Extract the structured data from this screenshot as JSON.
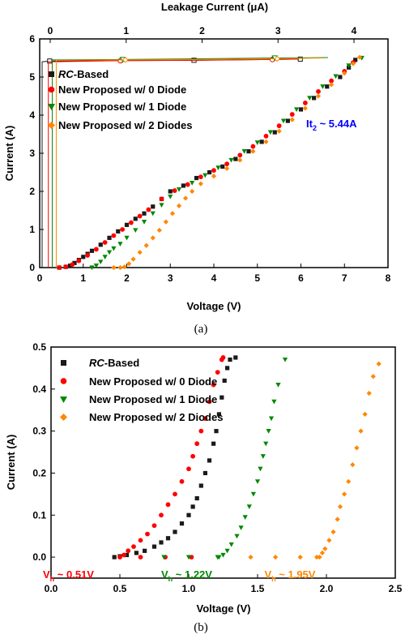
{
  "colors": {
    "rc": "#1a1a1a",
    "d0": "#ff0000",
    "d1": "#008800",
    "d2": "#ff8800",
    "it2": "#0000ff"
  },
  "legend_labels": {
    "rc_italic": "RC",
    "rc_rest": "-Based",
    "d0": "New Proposed w/ 0 Diode",
    "d1": "New Proposed w/ 1 Diode",
    "d2": "New Proposed w/ 2 Diodes"
  },
  "chart_data": [
    {
      "id": "a",
      "type": "scatter",
      "caption": "(a)",
      "xlabel": "Voltage (V)",
      "ylabel": "Current (A)",
      "x2label": "Leakage Current (μA)",
      "xlim": [
        0,
        8
      ],
      "ylim": [
        0,
        6
      ],
      "x2lim": [
        0,
        4
      ],
      "xticks": [
        "0",
        "1",
        "2",
        "3",
        "4",
        "5",
        "6",
        "7",
        "8"
      ],
      "yticks": [
        "0",
        "1",
        "2",
        "3",
        "4",
        "5",
        "6"
      ],
      "x2ticks": [
        "0",
        "1",
        "2",
        "3",
        "4"
      ],
      "annotation": {
        "main": "It",
        "sub": "2",
        "rest": " ~ 5.44A",
        "x": 6.05,
        "y": 3.9
      },
      "series": [
        {
          "key": "rc",
          "marker": "square",
          "points": [
            [
              0.45,
              0
            ],
            [
              0.6,
              0.02
            ],
            [
              0.7,
              0.05
            ],
            [
              0.8,
              0.12
            ],
            [
              0.9,
              0.2
            ],
            [
              1.0,
              0.28
            ],
            [
              1.1,
              0.36
            ],
            [
              1.2,
              0.44
            ],
            [
              1.4,
              0.6
            ],
            [
              1.6,
              0.78
            ],
            [
              1.8,
              0.95
            ],
            [
              2.0,
              1.12
            ],
            [
              2.2,
              1.28
            ],
            [
              2.4,
              1.42
            ],
            [
              2.6,
              1.6
            ],
            [
              2.8,
              1.8
            ],
            [
              3.0,
              2.0
            ],
            [
              3.3,
              2.15
            ],
            [
              3.6,
              2.35
            ],
            [
              3.9,
              2.5
            ],
            [
              4.2,
              2.65
            ],
            [
              4.5,
              2.85
            ],
            [
              4.8,
              3.05
            ],
            [
              5.1,
              3.3
            ],
            [
              5.4,
              3.55
            ],
            [
              5.7,
              3.85
            ],
            [
              6.0,
              4.15
            ],
            [
              6.3,
              4.45
            ],
            [
              6.6,
              4.75
            ],
            [
              6.9,
              5.0
            ],
            [
              7.1,
              5.25
            ],
            [
              7.25,
              5.45
            ]
          ]
        },
        {
          "key": "d0",
          "marker": "circle",
          "points": [
            [
              0.45,
              0
            ],
            [
              0.6,
              0.02
            ],
            [
              0.75,
              0.08
            ],
            [
              0.9,
              0.18
            ],
            [
              1.1,
              0.32
            ],
            [
              1.3,
              0.48
            ],
            [
              1.5,
              0.66
            ],
            [
              1.7,
              0.84
            ],
            [
              1.9,
              1.0
            ],
            [
              2.1,
              1.18
            ],
            [
              2.3,
              1.35
            ],
            [
              2.5,
              1.52
            ],
            [
              2.8,
              1.8
            ],
            [
              3.1,
              2.02
            ],
            [
              3.4,
              2.18
            ],
            [
              3.7,
              2.38
            ],
            [
              4.0,
              2.55
            ],
            [
              4.3,
              2.72
            ],
            [
              4.6,
              2.95
            ],
            [
              4.9,
              3.18
            ],
            [
              5.2,
              3.45
            ],
            [
              5.5,
              3.72
            ],
            [
              5.8,
              4.02
            ],
            [
              6.1,
              4.32
            ],
            [
              6.4,
              4.62
            ],
            [
              6.7,
              4.9
            ],
            [
              7.0,
              5.15
            ],
            [
              7.2,
              5.38
            ]
          ]
        },
        {
          "key": "d1",
          "marker": "triangle-down",
          "points": [
            [
              1.2,
              0
            ],
            [
              1.3,
              0.05
            ],
            [
              1.4,
              0.15
            ],
            [
              1.5,
              0.28
            ],
            [
              1.6,
              0.4
            ],
            [
              1.7,
              0.5
            ],
            [
              1.85,
              0.62
            ],
            [
              2.0,
              0.78
            ],
            [
              2.2,
              0.98
            ],
            [
              2.4,
              1.2
            ],
            [
              2.6,
              1.42
            ],
            [
              2.8,
              1.64
            ],
            [
              3.0,
              1.86
            ],
            [
              3.2,
              2.05
            ],
            [
              3.5,
              2.22
            ],
            [
              3.8,
              2.42
            ],
            [
              4.1,
              2.62
            ],
            [
              4.4,
              2.82
            ],
            [
              4.7,
              3.05
            ],
            [
              5.0,
              3.28
            ],
            [
              5.3,
              3.55
            ],
            [
              5.6,
              3.85
            ],
            [
              5.9,
              4.15
            ],
            [
              6.2,
              4.45
            ],
            [
              6.5,
              4.75
            ],
            [
              6.8,
              5.02
            ],
            [
              7.1,
              5.3
            ],
            [
              7.4,
              5.5
            ]
          ]
        },
        {
          "key": "d2",
          "marker": "diamond",
          "points": [
            [
              1.7,
              0
            ],
            [
              1.85,
              0
            ],
            [
              1.95,
              0.02
            ],
            [
              2.05,
              0.1
            ],
            [
              2.15,
              0.22
            ],
            [
              2.3,
              0.4
            ],
            [
              2.45,
              0.58
            ],
            [
              2.6,
              0.78
            ],
            [
              2.75,
              0.98
            ],
            [
              2.9,
              1.2
            ],
            [
              3.05,
              1.42
            ],
            [
              3.2,
              1.62
            ],
            [
              3.35,
              1.82
            ],
            [
              3.5,
              2.0
            ],
            [
              3.7,
              2.2
            ],
            [
              4.0,
              2.4
            ],
            [
              4.3,
              2.6
            ],
            [
              4.6,
              2.82
            ],
            [
              4.9,
              3.05
            ],
            [
              5.2,
              3.3
            ],
            [
              5.5,
              3.58
            ],
            [
              5.8,
              3.88
            ],
            [
              6.1,
              4.18
            ],
            [
              6.4,
              4.5
            ],
            [
              6.7,
              4.8
            ],
            [
              7.0,
              5.1
            ],
            [
              7.2,
              5.35
            ],
            [
              7.35,
              5.52
            ]
          ]
        }
      ],
      "leakage_series": [
        {
          "key": "rc",
          "marker": "square",
          "points": [
            [
              0.0,
              0.0
            ],
            [
              0.0,
              5.4
            ],
            [
              0.1,
              5.42
            ],
            [
              1.0,
              5.43
            ],
            [
              2.0,
              5.44
            ],
            [
              3.0,
              5.46
            ],
            [
              3.4,
              5.47
            ]
          ]
        },
        {
          "key": "d0",
          "marker": "circle",
          "points": [
            [
              0.05,
              0.0
            ],
            [
              0.05,
              5.4
            ],
            [
              1.0,
              5.43
            ],
            [
              2.0,
              5.44
            ],
            [
              3.0,
              5.46
            ],
            [
              3.35,
              5.47
            ]
          ]
        },
        {
          "key": "d1",
          "marker": "triangle-down",
          "points": [
            [
              0.07,
              0.0
            ],
            [
              0.07,
              5.45
            ],
            [
              1.0,
              5.46
            ],
            [
              2.0,
              5.48
            ],
            [
              3.0,
              5.5
            ],
            [
              3.7,
              5.51
            ]
          ]
        },
        {
          "key": "d2",
          "marker": "diamond",
          "points": [
            [
              0.09,
              0.0
            ],
            [
              0.09,
              5.44
            ],
            [
              1.0,
              5.45
            ],
            [
              2.0,
              5.46
            ],
            [
              3.0,
              5.48
            ],
            [
              3.6,
              5.5
            ]
          ]
        }
      ]
    },
    {
      "id": "b",
      "type": "scatter",
      "caption": "(b)",
      "xlabel": "Voltage (V)",
      "ylabel": "Current (A)",
      "xlim": [
        0,
        2.5
      ],
      "ylim": [
        -0.05,
        0.5
      ],
      "xticks": [
        "0.0",
        "0.5",
        "1.0",
        "1.5",
        "2.0",
        "2.5"
      ],
      "yticks": [
        "0.0",
        "0.1",
        "0.2",
        "0.3",
        "0.4",
        "0.5"
      ],
      "annotations": [
        {
          "key": "d0",
          "main": "V",
          "sub": "h",
          "rest": " ~ 0.51V",
          "x": 0.2,
          "y": -0.04
        },
        {
          "key": "d1",
          "main": "V",
          "sub": "h",
          "rest": " ~ 1.22V",
          "x": 1.0,
          "y": -0.04
        },
        {
          "key": "d2",
          "main": "V",
          "sub": "h",
          "rest": " ~ 1.95V",
          "x": 1.75,
          "y": -0.04
        }
      ],
      "series": [
        {
          "key": "rc",
          "marker": "square",
          "points": [
            [
              0.46,
              0.0
            ],
            [
              0.5,
              0.002
            ],
            [
              0.55,
              0.005
            ],
            [
              0.62,
              0.01
            ],
            [
              0.68,
              0.015
            ],
            [
              0.75,
              0.025
            ],
            [
              0.8,
              0.035
            ],
            [
              0.85,
              0.045
            ],
            [
              0.9,
              0.06
            ],
            [
              0.95,
              0.08
            ],
            [
              1.0,
              0.1
            ],
            [
              1.03,
              0.12
            ],
            [
              1.06,
              0.14
            ],
            [
              1.09,
              0.17
            ],
            [
              1.12,
              0.2
            ],
            [
              1.15,
              0.23
            ],
            [
              1.18,
              0.27
            ],
            [
              1.2,
              0.3
            ],
            [
              1.22,
              0.34
            ],
            [
              1.24,
              0.38
            ],
            [
              1.26,
              0.42
            ],
            [
              1.28,
              0.45
            ],
            [
              1.3,
              0.47
            ],
            [
              1.34,
              0.475
            ]
          ]
        },
        {
          "key": "d0",
          "marker": "circle",
          "points": [
            [
              0.5,
              0.0
            ],
            [
              0.53,
              0.005
            ],
            [
              0.56,
              0.015
            ],
            [
              0.6,
              0.025
            ],
            [
              0.65,
              0.04
            ],
            [
              0.7,
              0.055
            ],
            [
              0.75,
              0.075
            ],
            [
              0.8,
              0.1
            ],
            [
              0.85,
              0.125
            ],
            [
              0.9,
              0.15
            ],
            [
              0.95,
              0.18
            ],
            [
              1.0,
              0.21
            ],
            [
              1.03,
              0.24
            ],
            [
              1.06,
              0.27
            ],
            [
              1.09,
              0.3
            ],
            [
              1.12,
              0.33
            ],
            [
              1.15,
              0.37
            ],
            [
              1.18,
              0.41
            ],
            [
              1.21,
              0.44
            ],
            [
              1.24,
              0.47
            ],
            [
              1.25,
              0.475
            ],
            [
              0.65,
              0.0
            ],
            [
              0.83,
              0.0
            ],
            [
              1.02,
              0.0
            ]
          ]
        },
        {
          "key": "d1",
          "marker": "triangle-down",
          "points": [
            [
              1.22,
              0.0
            ],
            [
              1.25,
              0.005
            ],
            [
              1.28,
              0.015
            ],
            [
              1.31,
              0.03
            ],
            [
              1.35,
              0.05
            ],
            [
              1.38,
              0.07
            ],
            [
              1.41,
              0.095
            ],
            [
              1.44,
              0.12
            ],
            [
              1.47,
              0.15
            ],
            [
              1.5,
              0.18
            ],
            [
              1.52,
              0.21
            ],
            [
              1.54,
              0.24
            ],
            [
              1.56,
              0.27
            ],
            [
              1.58,
              0.3
            ],
            [
              1.6,
              0.33
            ],
            [
              1.62,
              0.37
            ],
            [
              1.65,
              0.41
            ],
            [
              1.7,
              0.47
            ],
            [
              0.82,
              0.0
            ],
            [
              1.0,
              0.0
            ],
            [
              1.21,
              0.0
            ]
          ]
        },
        {
          "key": "d2",
          "marker": "diamond",
          "points": [
            [
              1.95,
              0.0
            ],
            [
              1.97,
              0.01
            ],
            [
              1.99,
              0.02
            ],
            [
              2.02,
              0.04
            ],
            [
              2.05,
              0.06
            ],
            [
              2.08,
              0.09
            ],
            [
              2.1,
              0.12
            ],
            [
              2.13,
              0.15
            ],
            [
              2.16,
              0.18
            ],
            [
              2.19,
              0.22
            ],
            [
              2.22,
              0.26
            ],
            [
              2.25,
              0.3
            ],
            [
              2.28,
              0.34
            ],
            [
              2.31,
              0.39
            ],
            [
              2.34,
              0.43
            ],
            [
              2.38,
              0.46
            ],
            [
              1.45,
              0.0
            ],
            [
              1.63,
              0.0
            ],
            [
              1.81,
              0.0
            ],
            [
              1.93,
              0.0
            ]
          ]
        }
      ]
    }
  ]
}
